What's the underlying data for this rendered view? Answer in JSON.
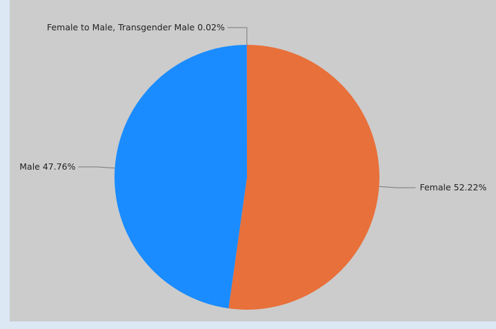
{
  "chart_data": {
    "type": "pie",
    "categories": [
      "Female",
      "Male",
      "Female to Male, Transgender Male"
    ],
    "values": [
      52.22,
      47.76,
      0.02
    ],
    "value_labels": [
      "52.22%",
      "47.76%",
      "0.02%"
    ],
    "colors": [
      "#e8703a",
      "#1a8cff",
      "#8b5fbf"
    ]
  }
}
